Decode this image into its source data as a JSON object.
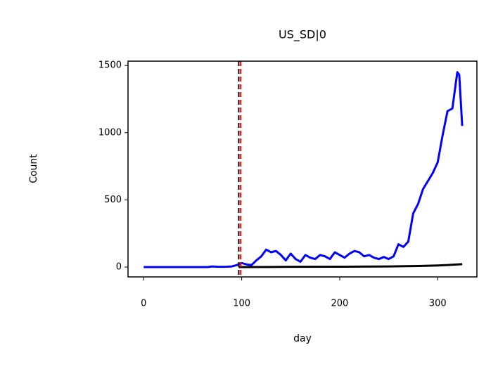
{
  "chart_data": {
    "type": "line",
    "title": "US_SD|0",
    "x_label": "day",
    "y_label": "Count",
    "xlim": [
      -16,
      340
    ],
    "ylim": [
      -73,
      1532
    ],
    "xticks": [
      0,
      100,
      200,
      300
    ],
    "yticks": [
      0,
      500,
      1000,
      1500
    ],
    "grid": false,
    "series": [
      {
        "color": "#0000ff",
        "x": [
          0,
          5,
          10,
          15,
          20,
          25,
          30,
          35,
          40,
          45,
          50,
          55,
          60,
          65,
          70,
          75,
          80,
          85,
          90,
          95,
          100,
          105,
          110,
          115,
          120,
          125,
          130,
          135,
          140,
          145,
          150,
          155,
          160,
          165,
          170,
          175,
          180,
          185,
          190,
          195,
          200,
          205,
          210,
          215,
          220,
          225,
          230,
          235,
          240,
          245,
          250,
          255,
          260,
          265,
          270,
          275,
          280,
          285,
          290,
          295,
          300,
          305,
          310,
          315,
          320,
          322,
          325
        ],
        "values": [
          0,
          0,
          0,
          0,
          0,
          0,
          0,
          0,
          0,
          0,
          0,
          0,
          0,
          0,
          5,
          3,
          2,
          3,
          5,
          15,
          30,
          20,
          15,
          50,
          80,
          130,
          110,
          120,
          90,
          50,
          100,
          60,
          40,
          90,
          70,
          60,
          90,
          80,
          60,
          110,
          90,
          70,
          100,
          120,
          110,
          80,
          90,
          70,
          60,
          75,
          60,
          80,
          170,
          150,
          190,
          400,
          470,
          580,
          640,
          700,
          780,
          980,
          1160,
          1180,
          1450,
          1430,
          1050
        ]
      },
      {
        "color": "#000000",
        "x": [
          97,
          150,
          200,
          250,
          280,
          300,
          310,
          320,
          325
        ],
        "values": [
          0,
          2,
          3,
          5,
          8,
          12,
          15,
          20,
          22
        ]
      }
    ],
    "vlines": [
      {
        "x": 97,
        "color": "#000000"
      },
      {
        "x": 99,
        "color": "#ff0000"
      }
    ]
  }
}
